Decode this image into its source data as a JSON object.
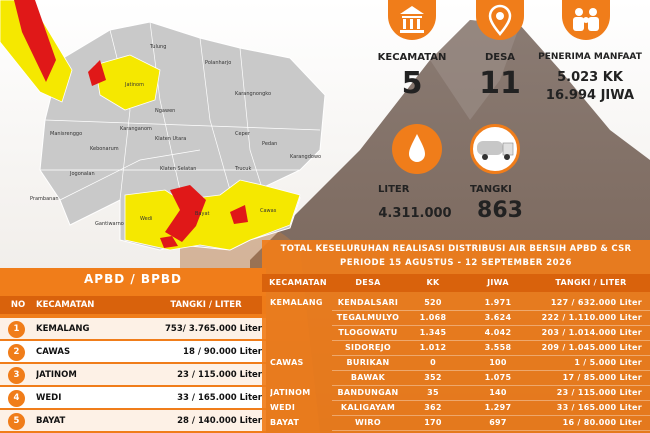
{
  "stats": {
    "kecamatan": {
      "label": "KECAMATAN",
      "value": "5"
    },
    "desa": {
      "label": "DESA",
      "value": "11"
    },
    "penerima": {
      "label": "PENERIMA MANFAAT",
      "kk": "5.023 KK",
      "jiwa": "16.994 JIWA"
    },
    "liter": {
      "label": "LITER",
      "value": "4.311.000"
    },
    "tangki": {
      "label": "TANGKI",
      "value": "863"
    }
  },
  "map": {
    "labels": [
      "Tulung",
      "Polanharjo",
      "Jatinom",
      "Karanganom",
      "Karangnongko",
      "Ngawen",
      "Manisrenggo",
      "Klaten Utara",
      "Kebonarum",
      "Ceper",
      "Pedan",
      "Karangdowo",
      "Jogonalan",
      "Klaten Selatan",
      "Trucuk",
      "Prambanan",
      "Gantiwarno",
      "Wedi",
      "Bayat",
      "Cawas"
    ]
  },
  "apbd_table": {
    "title": "APBD / BPBD",
    "header": [
      "NO",
      "KECAMATAN",
      "TANGKI / LITER"
    ],
    "rows": [
      [
        "1",
        "KEMALANG",
        "753/ 3.765.000 Liter"
      ],
      [
        "2",
        "CAWAS",
        "18 / 90.000 Liter"
      ],
      [
        "3",
        "JATINOM",
        "23 / 115.000 Liter"
      ],
      [
        "4",
        "WEDI",
        "33 / 165.000 Liter"
      ],
      [
        "5",
        "BAYAT",
        "28 / 140.000 Liter"
      ]
    ]
  },
  "total_table": {
    "title": "TOTAL KESELURUHAN REALISASI DISTRIBUSI AIR BERSIH APBD & CSR",
    "period": "PERIODE 15 AGUSTUS - 12 SEPTEMBER 2026",
    "header": [
      "KECAMATAN",
      "DESA",
      "KK",
      "JIWA",
      "TANGKI / LITER"
    ],
    "groups": [
      {
        "kecamatan": "KEMALANG",
        "rows": [
          [
            "KENDALSARI",
            "520",
            "1.971",
            "127 / 632.000 Liter"
          ],
          [
            "TEGALMULYO",
            "1.068",
            "3.624",
            "222 / 1.110.000 Liter"
          ],
          [
            "TLOGOWATU",
            "1.345",
            "4.042",
            "203 / 1.014.000 Liter"
          ],
          [
            "SIDOREJO",
            "1.012",
            "3.558",
            "209 / 1.045.000 Liter"
          ]
        ]
      },
      {
        "kecamatan": "CAWAS",
        "rows": [
          [
            "BURIKAN",
            "0",
            "100",
            "1 / 5.000 Liter"
          ],
          [
            "BAWAK",
            "352",
            "1.075",
            "17 / 85.000 Liter"
          ]
        ]
      },
      {
        "kecamatan": "JATINOM",
        "rows": [
          [
            "BANDUNGAN",
            "35",
            "140",
            "23 / 115.000 Liter"
          ]
        ]
      },
      {
        "kecamatan": "WEDI",
        "rows": [
          [
            "KALIGAYAM",
            "362",
            "1.297",
            "33 / 165.000 Liter"
          ]
        ]
      },
      {
        "kecamatan": "BAYAT",
        "rows": [
          [
            "WIRO",
            "170",
            "697",
            "16 / 80.000 Liter"
          ]
        ]
      }
    ]
  }
}
